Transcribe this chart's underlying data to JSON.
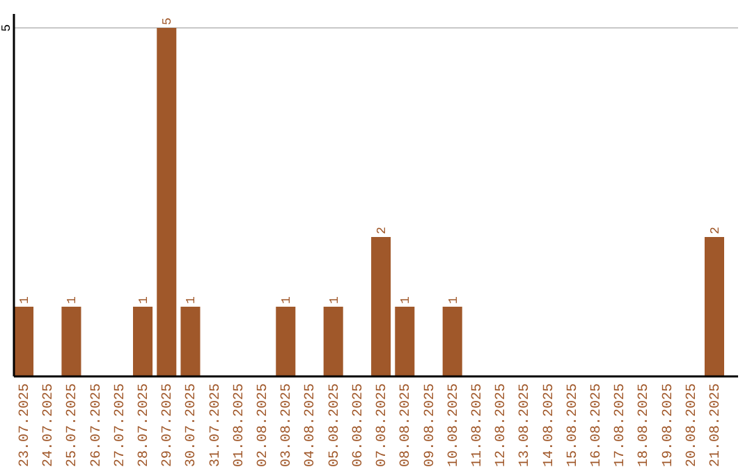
{
  "chart_data": {
    "type": "bar",
    "categories": [
      "23.07.2025",
      "24.07.2025",
      "25.07.2025",
      "26.07.2025",
      "27.07.2025",
      "28.07.2025",
      "29.07.2025",
      "30.07.2025",
      "31.07.2025",
      "01.08.2025",
      "02.08.2025",
      "03.08.2025",
      "04.08.2025",
      "05.08.2025",
      "06.08.2025",
      "07.08.2025",
      "08.08.2025",
      "09.08.2025",
      "10.08.2025",
      "11.08.2025",
      "12.08.2025",
      "13.08.2025",
      "14.08.2025",
      "15.08.2025",
      "16.08.2025",
      "17.08.2025",
      "18.08.2025",
      "19.08.2025",
      "20.08.2025",
      "21.08.2025"
    ],
    "values": [
      1,
      0,
      1,
      0,
      0,
      1,
      5,
      1,
      0,
      0,
      0,
      1,
      0,
      1,
      0,
      2,
      1,
      0,
      1,
      0,
      0,
      0,
      0,
      0,
      0,
      0,
      0,
      0,
      0,
      2
    ],
    "value_labels": [
      "1",
      null,
      "1",
      null,
      null,
      "1",
      "5",
      "1",
      null,
      null,
      null,
      "1",
      null,
      "1",
      null,
      "2",
      "1",
      null,
      "1",
      null,
      null,
      null,
      null,
      null,
      null,
      null,
      null,
      null,
      null,
      "2"
    ],
    "color": "#a0582a",
    "ylim": [
      0,
      5
    ],
    "yticks": [
      5
    ],
    "ref_lines": [
      {
        "axis": "y",
        "value": 5,
        "color": "#c8c8c8"
      }
    ]
  }
}
